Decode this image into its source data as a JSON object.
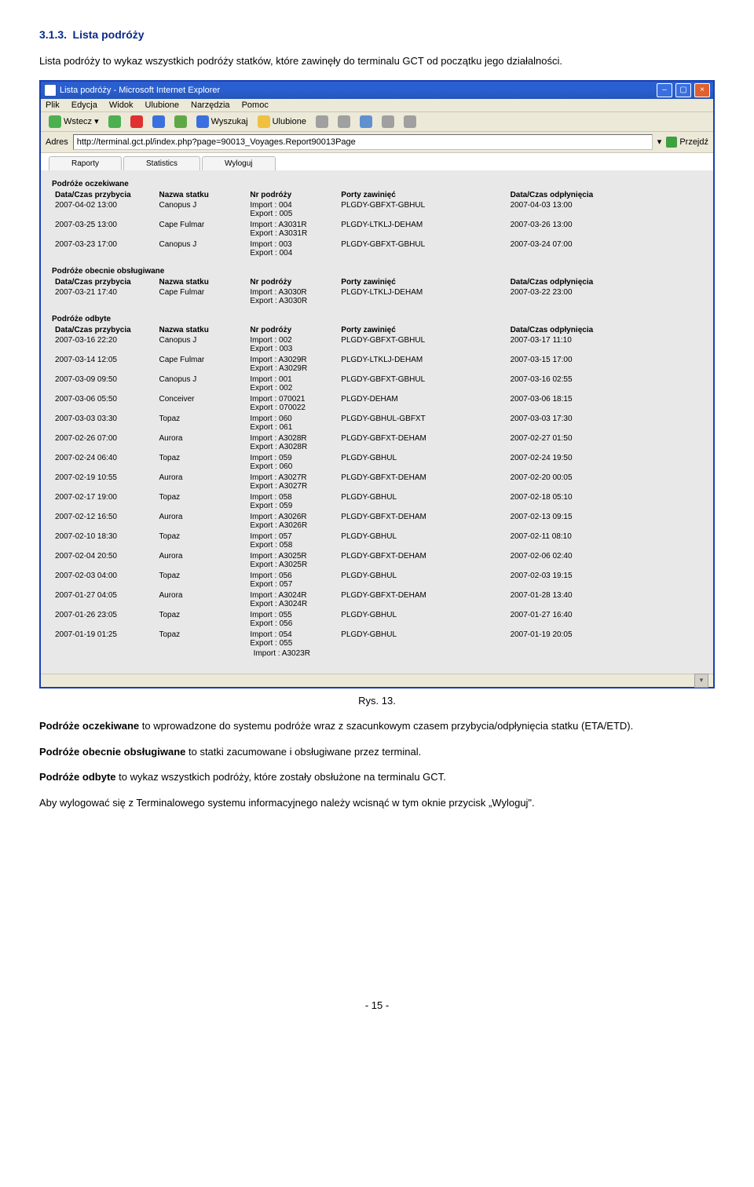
{
  "doc": {
    "section_num": "3.1.3.",
    "section_title": "Lista podróży",
    "intro": "Lista podróży to wykaz wszystkich podróży statków, które zawinęły do terminalu GCT od początku jego działalności.",
    "fig": "Rys. 13.",
    "p_oczekiwane_label": "Podróże oczekiwane",
    "p_oczekiwane_rest": " to wprowadzone do systemu podróże wraz z szacunkowym czasem przybycia/odpłynięcia statku (ETA/ETD).",
    "p_obecnie_label": "Podróże obecnie obsługiwane",
    "p_obecnie_rest": " to statki zacumowane i obsługiwane przez terminal.",
    "p_odbyte_label": "Podróże odbyte",
    "p_odbyte_rest": " to wykaz wszystkich podróży, które zostały obsłużone na terminalu GCT.",
    "p_logout": "Aby wylogować się z Terminalowego systemu informacyjnego należy wcisnąć w tym oknie przycisk „Wyloguj\".",
    "page_number": "- 15 -"
  },
  "ie": {
    "title": "Lista podróży - Microsoft Internet Explorer",
    "menu": [
      "Plik",
      "Edycja",
      "Widok",
      "Ulubione",
      "Narzędzia",
      "Pomoc"
    ],
    "back": "Wstecz",
    "search": "Wyszukaj",
    "fav": "Ulubione",
    "addr_label": "Adres",
    "url": "http://terminal.gct.pl/index.php?page=90013_Voyages.Report90013Page",
    "go": "Przejdź"
  },
  "tabs": [
    "Raporty",
    "Statistics",
    "Wyloguj"
  ],
  "headers": {
    "arrive": "Data/Czas przybycia",
    "ship": "Nazwa statku",
    "nr": "Nr podróży",
    "ports": "Porty zawinięć",
    "depart": "Data/Czas odpłynięcia"
  },
  "groups": {
    "oczekiwane": {
      "title": "Podróże oczekiwane",
      "cols": [
        "16%",
        "14%",
        "14%",
        "26%",
        "30%"
      ],
      "rows": [
        {
          "a": "2007-04-02 13:00",
          "s": "Canopus J",
          "imp": "Import : 004",
          "exp": "Export : 005",
          "p": "PLGDY-GBFXT-GBHUL",
          "d": "2007-04-03 13:00"
        },
        {
          "a": "2007-03-25 13:00",
          "s": "Cape Fulmar",
          "imp": "Import : A3031R",
          "exp": "Export : A3031R",
          "p": "PLGDY-LTKLJ-DEHAM",
          "d": "2007-03-26 13:00"
        },
        {
          "a": "2007-03-23 17:00",
          "s": "Canopus J",
          "imp": "Import : 003",
          "exp": "Export : 004",
          "p": "PLGDY-GBFXT-GBHUL",
          "d": "2007-03-24 07:00"
        }
      ]
    },
    "obecnie": {
      "title": "Podróże obecnie obsługiwane",
      "cols": [
        "16%",
        "14%",
        "14%",
        "26%",
        "30%"
      ],
      "rows": [
        {
          "a": "2007-03-21 17:40",
          "s": "Cape Fulmar",
          "imp": "Import : A3030R",
          "exp": "Export : A3030R",
          "p": "PLGDY-LTKLJ-DEHAM",
          "d": "2007-03-22 23:00"
        }
      ]
    },
    "odbyte": {
      "title": "Podróże odbyte",
      "cols": [
        "16%",
        "14%",
        "14%",
        "26%",
        "30%"
      ],
      "rows": [
        {
          "a": "2007-03-16 22:20",
          "s": "Canopus J",
          "imp": "Import : 002",
          "exp": "Export : 003",
          "p": "PLGDY-GBFXT-GBHUL",
          "d": "2007-03-17 11:10"
        },
        {
          "a": "2007-03-14 12:05",
          "s": "Cape Fulmar",
          "imp": "Import : A3029R",
          "exp": "Export : A3029R",
          "p": "PLGDY-LTKLJ-DEHAM",
          "d": "2007-03-15 17:00"
        },
        {
          "a": "2007-03-09 09:50",
          "s": "Canopus J",
          "imp": "Import : 001",
          "exp": "Export : 002",
          "p": "PLGDY-GBFXT-GBHUL",
          "d": "2007-03-16 02:55"
        },
        {
          "a": "2007-03-06 05:50",
          "s": "Conceiver",
          "imp": "Import : 070021",
          "exp": "Export : 070022",
          "p": "PLGDY-DEHAM",
          "d": "2007-03-06 18:15"
        },
        {
          "a": "2007-03-03 03:30",
          "s": "Topaz",
          "imp": "Import : 060",
          "exp": "Export : 061",
          "p": "PLGDY-GBHUL-GBFXT",
          "d": "2007-03-03 17:30"
        },
        {
          "a": "2007-02-26 07:00",
          "s": "Aurora",
          "imp": "Import : A3028R",
          "exp": "Export : A3028R",
          "p": "PLGDY-GBFXT-DEHAM",
          "d": "2007-02-27 01:50"
        },
        {
          "a": "2007-02-24 06:40",
          "s": "Topaz",
          "imp": "Import : 059",
          "exp": "Export : 060",
          "p": "PLGDY-GBHUL",
          "d": "2007-02-24 19:50"
        },
        {
          "a": "2007-02-19 10:55",
          "s": "Aurora",
          "imp": "Import : A3027R",
          "exp": "Export : A3027R",
          "p": "PLGDY-GBFXT-DEHAM",
          "d": "2007-02-20 00:05"
        },
        {
          "a": "2007-02-17 19:00",
          "s": "Topaz",
          "imp": "Import : 058",
          "exp": "Export : 059",
          "p": "PLGDY-GBHUL",
          "d": "2007-02-18 05:10"
        },
        {
          "a": "2007-02-12 16:50",
          "s": "Aurora",
          "imp": "Import : A3026R",
          "exp": "Export : A3026R",
          "p": "PLGDY-GBFXT-DEHAM",
          "d": "2007-02-13 09:15"
        },
        {
          "a": "2007-02-10 18:30",
          "s": "Topaz",
          "imp": "Import : 057",
          "exp": "Export : 058",
          "p": "PLGDY-GBHUL",
          "d": "2007-02-11 08:10"
        },
        {
          "a": "2007-02-04 20:50",
          "s": "Aurora",
          "imp": "Import : A3025R",
          "exp": "Export : A3025R",
          "p": "PLGDY-GBFXT-DEHAM",
          "d": "2007-02-06 02:40"
        },
        {
          "a": "2007-02-03 04:00",
          "s": "Topaz",
          "imp": "Import : 056",
          "exp": "Export : 057",
          "p": "PLGDY-GBHUL",
          "d": "2007-02-03 19:15"
        },
        {
          "a": "2007-01-27 04:05",
          "s": "Aurora",
          "imp": "Import : A3024R",
          "exp": "Export : A3024R",
          "p": "PLGDY-GBFXT-DEHAM",
          "d": "2007-01-28 13:40"
        },
        {
          "a": "2007-01-26 23:05",
          "s": "Topaz",
          "imp": "Import : 055",
          "exp": "Export : 056",
          "p": "PLGDY-GBHUL",
          "d": "2007-01-27 16:40"
        },
        {
          "a": "2007-01-19 01:25",
          "s": "Topaz",
          "imp": "Import : 054",
          "exp": "Export : 055",
          "p": "PLGDY-GBHUL",
          "d": "2007-01-19 20:05"
        }
      ],
      "trailing": "Import : A3023R"
    }
  }
}
